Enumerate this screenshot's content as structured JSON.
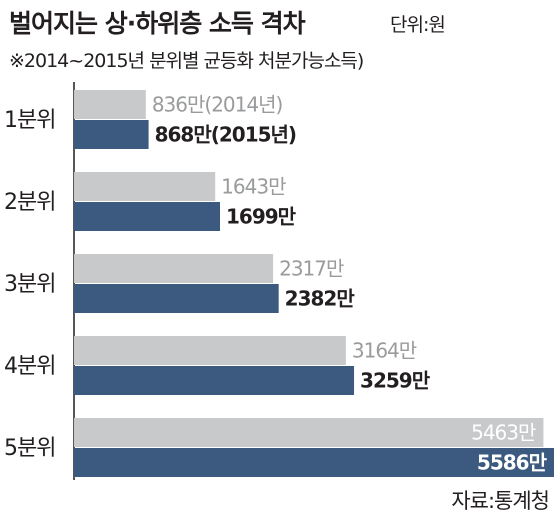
{
  "chart_data": {
    "type": "bar",
    "orientation": "horizontal",
    "title": "벌어지는 상·하위층 소득 격차",
    "unit": "단위:원",
    "subtitle": "※2014~2015년 분위별 균등화 처분가능소득)",
    "source": "자료:통계청",
    "categories": [
      "1분위",
      "2분위",
      "3분위",
      "4분위",
      "5분위"
    ],
    "series": [
      {
        "year": "2014",
        "values": [
          836,
          1643,
          2317,
          3164,
          5463
        ],
        "labels": [
          "836만(2014년)",
          "1643만",
          "2317만",
          "3164만",
          "5463만"
        ],
        "color": "#c8c9cb",
        "label_color": "#9a9b9d"
      },
      {
        "year": "2015",
        "values": [
          868,
          1699,
          2382,
          3259,
          5586
        ],
        "labels": [
          "868만(2015년)",
          "1699만",
          "2382만",
          "3259만",
          "5586만"
        ],
        "color": "#3c5a80",
        "label_color": "#231f20"
      }
    ],
    "grid": false,
    "legend": "none"
  }
}
